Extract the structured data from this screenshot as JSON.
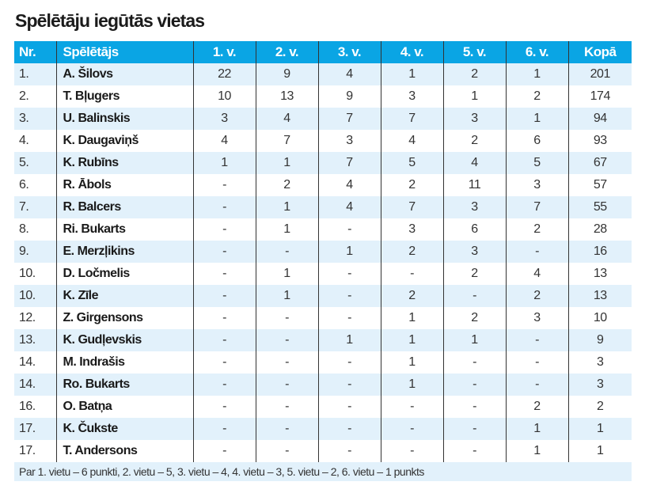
{
  "title": "Spēlētāju iegūtās vietas",
  "headers": [
    "Nr.",
    "Spēlētājs",
    "1. v.",
    "2. v.",
    "3. v.",
    "4. v.",
    "5. v.",
    "6. v.",
    "Kopā"
  ],
  "rows": [
    [
      "1.",
      "A. Šilovs",
      "22",
      "9",
      "4",
      "1",
      "2",
      "1",
      "201"
    ],
    [
      "2.",
      "T. Bļugers",
      "10",
      "13",
      "9",
      "3",
      "1",
      "2",
      "174"
    ],
    [
      "3.",
      "U. Balinskis",
      "3",
      "4",
      "7",
      "7",
      "3",
      "1",
      "94"
    ],
    [
      "4.",
      "K. Daugaviņš",
      "4",
      "7",
      "3",
      "4",
      "2",
      "6",
      "93"
    ],
    [
      "5.",
      "K. Rubīns",
      "1",
      "1",
      "7",
      "5",
      "4",
      "5",
      "67"
    ],
    [
      "6.",
      "R. Ābols",
      "-",
      "2",
      "4",
      "2",
      "11",
      "3",
      "57"
    ],
    [
      "7.",
      "R. Balcers",
      "-",
      "1",
      "4",
      "7",
      "3",
      "7",
      "55"
    ],
    [
      "8.",
      "Ri. Bukarts",
      "-",
      "1",
      "-",
      "3",
      "6",
      "2",
      "28"
    ],
    [
      "9.",
      "E. Merzļikins",
      "-",
      "-",
      "1",
      "2",
      "3",
      "-",
      "16"
    ],
    [
      "10.",
      "D. Ločmelis",
      "-",
      "1",
      "-",
      "-",
      "2",
      "4",
      "13"
    ],
    [
      "10.",
      "K. Zīle",
      "-",
      "1",
      "-",
      "2",
      "-",
      "2",
      "13"
    ],
    [
      "12.",
      "Z. Girgensons",
      "-",
      "-",
      "-",
      "1",
      "2",
      "3",
      "10"
    ],
    [
      "13.",
      "K. Gudļevskis",
      "-",
      "-",
      "1",
      "1",
      "1",
      "-",
      "9"
    ],
    [
      "14.",
      "M. Indrašis",
      "-",
      "-",
      "-",
      "1",
      "-",
      "-",
      "3"
    ],
    [
      "14.",
      "Ro. Bukarts",
      "-",
      "-",
      "-",
      "1",
      "-",
      "-",
      "3"
    ],
    [
      "16.",
      "O. Batņa",
      "-",
      "-",
      "-",
      "-",
      "-",
      "2",
      "2"
    ],
    [
      "17.",
      "K. Čukste",
      "-",
      "-",
      "-",
      "-",
      "-",
      "1",
      "1"
    ],
    [
      "17.",
      "T. Andersons",
      "-",
      "-",
      "-",
      "-",
      "-",
      "1",
      "1"
    ]
  ],
  "footnote": "Par 1. vietu – 6 punkti, 2. vietu – 5, 3. vietu – 4, 4. vietu – 3, 5. vietu – 2, 6. vietu – 1 punkts"
}
